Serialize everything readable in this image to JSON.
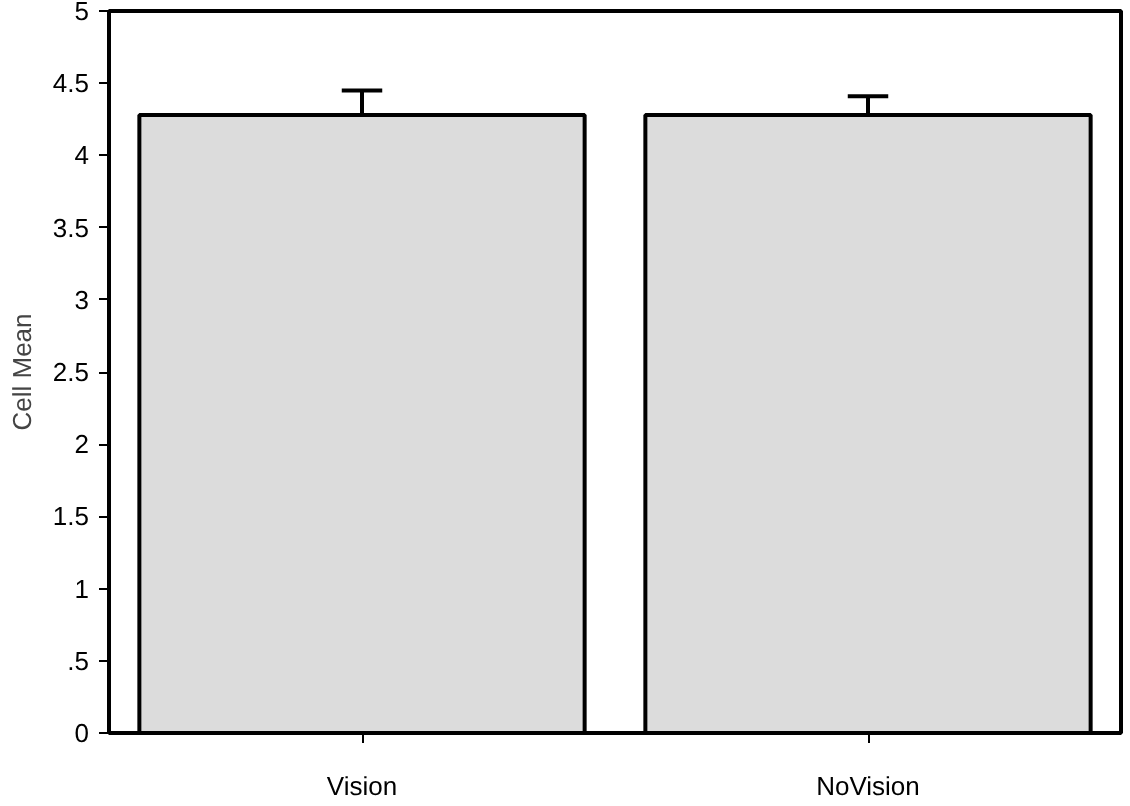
{
  "chart_data": {
    "type": "bar",
    "ylabel": "Cell Mean",
    "categories": [
      "Vision",
      "NoVision"
    ],
    "values": [
      4.28,
      4.28
    ],
    "errors": [
      [
        4.28,
        4.45
      ],
      [
        4.28,
        4.41
      ]
    ],
    "color": "#dcdcdc",
    "ylim": [
      0,
      5
    ],
    "yticks": [
      0,
      {
        "value": 0.5,
        "label": ".5"
      },
      1,
      1.5,
      2,
      2.5,
      3,
      3.5,
      4,
      4.5,
      5
    ],
    "grid": false
  }
}
